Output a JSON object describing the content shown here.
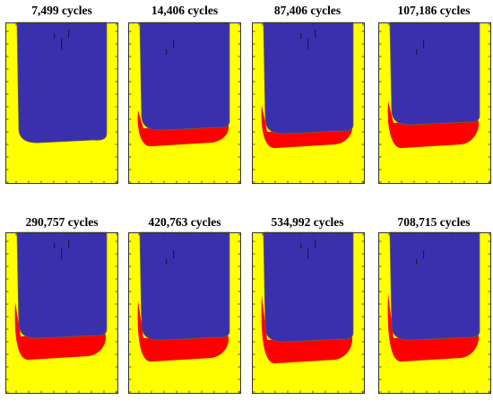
{
  "colors": {
    "yellow": "#FFFF00",
    "blue": "#3A30AE",
    "red": "#FF0000",
    "frame": "#333333"
  },
  "panels": [
    {
      "label": "7,499 cycles"
    },
    {
      "label": "14,406 cycles"
    },
    {
      "label": "87,406 cycles"
    },
    {
      "label": "107,186 cycles"
    },
    {
      "label": "290,757 cycles"
    },
    {
      "label": "420,763 cycles"
    },
    {
      "label": "534,992 cycles"
    },
    {
      "label": "708,715 cycles"
    }
  ]
}
